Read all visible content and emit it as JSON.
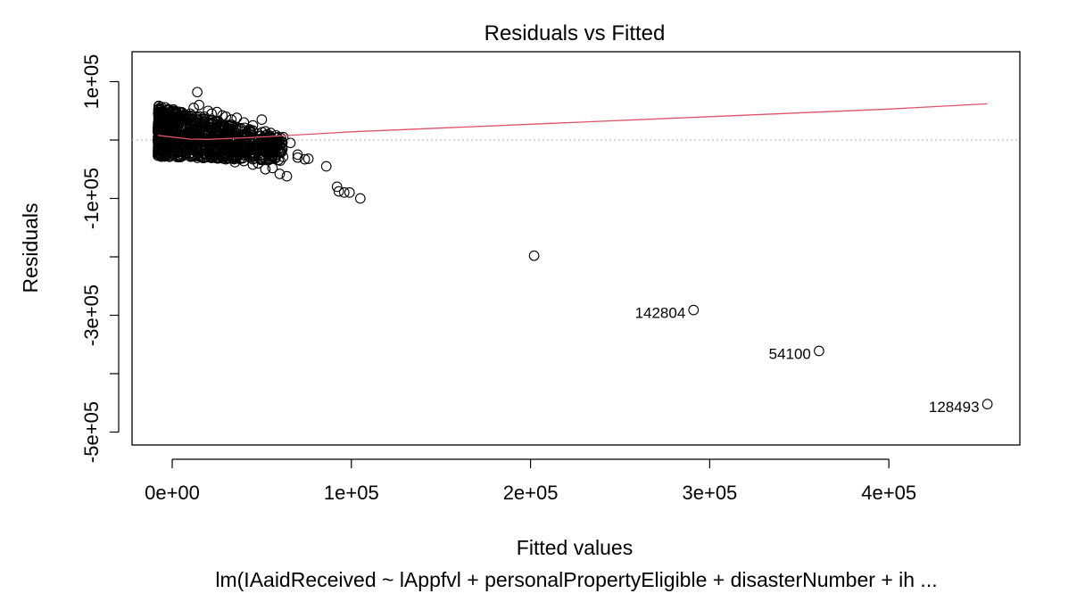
{
  "chart_data": {
    "type": "scatter",
    "title": "Residuals vs Fitted",
    "xlabel": "Fitted values",
    "ylabel": "Residuals",
    "caption": "lm(IAaidReceived ~ lAppfvl + personalPropertyEligible + disasterNumber + ih ...",
    "xlim": [
      -10000,
      460000
    ],
    "ylim": [
      -520000,
      150000
    ],
    "x_ticks": [
      {
        "value": 0,
        "label": "0e+00"
      },
      {
        "value": 100000,
        "label": "1e+05"
      },
      {
        "value": 200000,
        "label": "2e+05"
      },
      {
        "value": 300000,
        "label": "3e+05"
      },
      {
        "value": 400000,
        "label": "4e+05"
      }
    ],
    "y_ticks": [
      {
        "value": 100000,
        "label": "1e+05"
      },
      {
        "value": 0,
        "label": ""
      },
      {
        "value": -100000,
        "label": "-1e+05"
      },
      {
        "value": -200000,
        "label": ""
      },
      {
        "value": -300000,
        "label": "-3e+05"
      },
      {
        "value": -400000,
        "label": ""
      },
      {
        "value": -500000,
        "label": "-5e+05"
      }
    ],
    "reference_line": {
      "y": 0,
      "style": "dotted",
      "color": "#bdbdbd"
    },
    "smooth_line": {
      "color": "#df536b",
      "points": [
        [
          -8000,
          8000
        ],
        [
          0,
          5000
        ],
        [
          10000,
          1500
        ],
        [
          20000,
          1000
        ],
        [
          30000,
          2500
        ],
        [
          45000,
          4500
        ],
        [
          60000,
          7000
        ],
        [
          100000,
          14000
        ],
        [
          200000,
          27000
        ],
        [
          300000,
          40000
        ],
        [
          400000,
          53000
        ],
        [
          455000,
          62000
        ]
      ]
    },
    "points": [
      [
        5000,
        20000
      ],
      [
        8000,
        35000
      ],
      [
        10000,
        45000
      ],
      [
        12000,
        55000
      ],
      [
        14000,
        82000
      ],
      [
        15000,
        60000
      ],
      [
        18000,
        40000
      ],
      [
        20000,
        50000
      ],
      [
        22000,
        45000
      ],
      [
        25000,
        48000
      ],
      [
        28000,
        42000
      ],
      [
        30000,
        40000
      ],
      [
        33000,
        35000
      ],
      [
        36000,
        38000
      ],
      [
        40000,
        30000
      ],
      [
        45000,
        25000
      ],
      [
        50000,
        35000
      ],
      [
        52000,
        15000
      ],
      [
        55000,
        12000
      ],
      [
        58000,
        8000
      ],
      [
        62000,
        5000
      ],
      [
        66000,
        -5000
      ],
      [
        70000,
        -25000
      ],
      [
        3000,
        -5000
      ],
      [
        6000,
        -12000
      ],
      [
        9000,
        -15000
      ],
      [
        12000,
        -18000
      ],
      [
        15000,
        -22000
      ],
      [
        18000,
        -25000
      ],
      [
        22000,
        -28000
      ],
      [
        26000,
        -30000
      ],
      [
        30000,
        -33000
      ],
      [
        35000,
        -38000
      ],
      [
        40000,
        -36000
      ],
      [
        45000,
        -42000
      ],
      [
        48000,
        -40000
      ],
      [
        52000,
        -50000
      ],
      [
        56000,
        -48000
      ],
      [
        60000,
        -58000
      ],
      [
        64000,
        -62000
      ],
      [
        70000,
        -30000
      ],
      [
        74000,
        -33000
      ],
      [
        76000,
        -32000
      ],
      [
        86000,
        -45000
      ],
      [
        92000,
        -80000
      ],
      [
        93000,
        -88000
      ],
      [
        96000,
        -90000
      ],
      [
        99000,
        -90000
      ],
      [
        105000,
        -100000
      ],
      [
        202000,
        -198000
      ],
      [
        291000,
        -291000
      ],
      [
        361000,
        -361000
      ],
      [
        455000,
        -452000
      ]
    ],
    "dense_cloud_note": "",
    "labeled_points": [
      {
        "x": 291000,
        "y": -291000,
        "label": "142804"
      },
      {
        "x": 361000,
        "y": -361000,
        "label": "54100"
      },
      {
        "x": 455000,
        "y": -452000,
        "label": "128493"
      }
    ]
  }
}
